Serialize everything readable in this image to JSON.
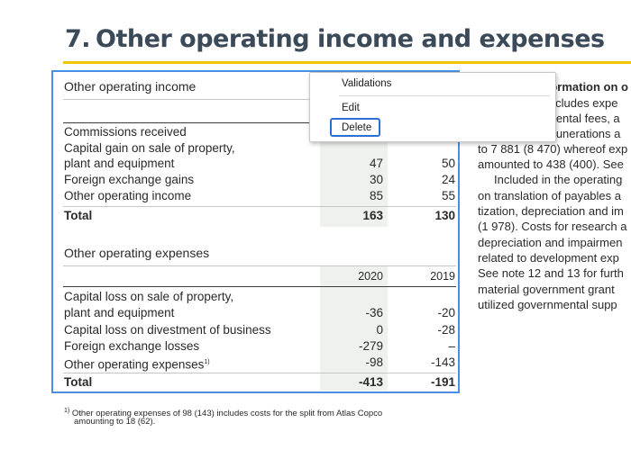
{
  "heading": {
    "number": "7.",
    "title": "Other operating income and expenses"
  },
  "income": {
    "title": "Other operating income",
    "rows": [
      {
        "label": "Commissions received",
        "v2020": "",
        "v2019": ""
      },
      {
        "label": "Capital gain on sale of property,",
        "v2020": "",
        "v2019": ""
      },
      {
        "label": "plant and equipment",
        "v2020": "47",
        "v2019": "50"
      },
      {
        "label": "Foreign exchange gains",
        "v2020": "30",
        "v2019": "24"
      },
      {
        "label": "Other operating income",
        "v2020": "85",
        "v2019": "55"
      }
    ],
    "total": {
      "label": "Total",
      "v2020": "163",
      "v2019": "130"
    }
  },
  "expenses": {
    "title": "Other operating expenses",
    "col_2020": "2020",
    "col_2019": "2019",
    "rows": [
      {
        "label": "Capital loss on sale of property,",
        "v2020": "",
        "v2019": ""
      },
      {
        "label": "plant and equipment",
        "v2020": "-36",
        "v2019": "-20"
      },
      {
        "label": "Capital loss on divestment of business",
        "v2020": "0",
        "v2019": "-28"
      },
      {
        "label": "Foreign exchange losses",
        "v2020": "-279",
        "v2019": "–"
      },
      {
        "label": "Other operating expenses",
        "sup": "1)",
        "v2020": "-98",
        "v2019": "-143"
      }
    ],
    "total": {
      "label": "Total",
      "v2020": "-413",
      "v2019": "-191"
    }
  },
  "footnote": {
    "marker": "1)",
    "line1": "Other operating expenses of 98 (143) includes costs for the split from Atlas Copco",
    "line2": "amounting to 18 (62)."
  },
  "context_menu": {
    "items": [
      "Validations",
      "Edit",
      "Delete"
    ],
    "focused": "Delete"
  },
  "right_column": [
    "formation on o",
    "includes expe",
    "mental fees, a",
    "munerations a",
    "to 7 881 (8 470) whereof exp",
    "amounted to 438 (400). See",
    "Included in the operating",
    "on translation of payables a",
    "tization, depreciation and im",
    "(1 978). Costs for research a",
    "depreciation and impairmen",
    "related to development exp",
    "See note 12 and 13 for furth",
    "material government grant",
    "utilized governmental supp"
  ]
}
